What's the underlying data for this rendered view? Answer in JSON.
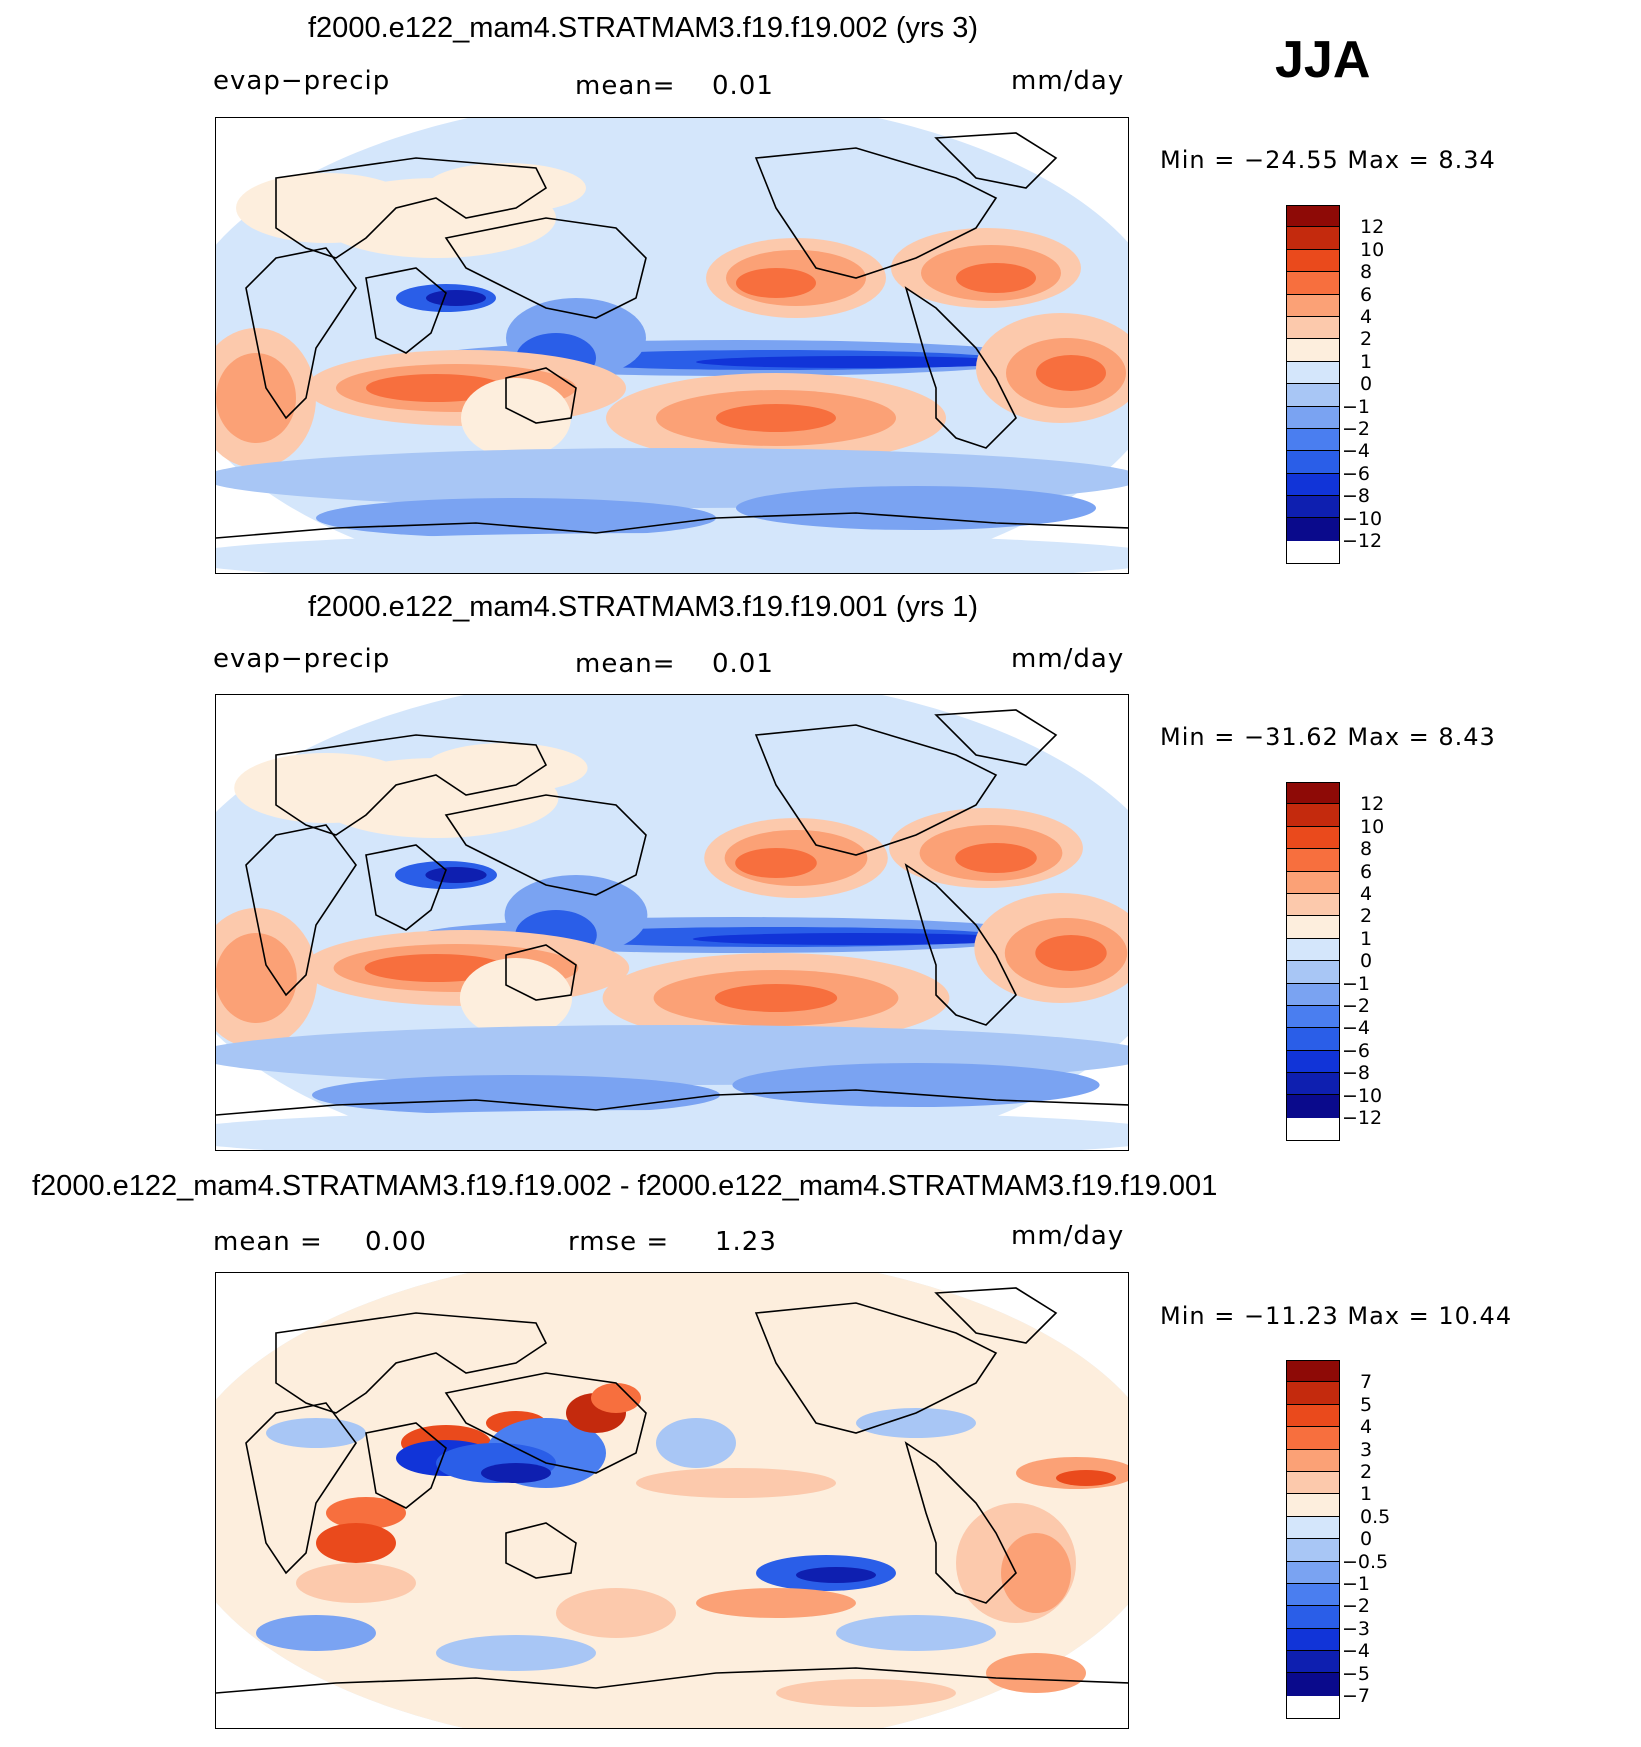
{
  "season": "JJA",
  "colors": {
    "field_levels": [
      "#0a0a8c",
      "#0e1fb0",
      "#1134d8",
      "#2a5ee8",
      "#4a7ef0",
      "#7aa3f2",
      "#a8c6f5",
      "#d4e6fb",
      "#fdeedd",
      "#fcc9ac",
      "#fba176",
      "#f76f3e",
      "#ea4a1c",
      "#c42a0d",
      "#8e0a06"
    ],
    "diff_levels": [
      "#0a0a8c",
      "#0e1fb0",
      "#1134d8",
      "#2a5ee8",
      "#4a7ef0",
      "#7aa3f2",
      "#a8c6f5",
      "#d4e6fb",
      "#fdeedd",
      "#fcc9ac",
      "#fba176",
      "#f76f3e",
      "#ea4a1c",
      "#c42a0d",
      "#8e0a06"
    ],
    "land_outline": "#000000"
  },
  "panels": [
    {
      "title": "f2000.e122_mam4.STRATMAM3.f19.f19.002 (yrs 3)",
      "left_label": "evap−precip",
      "mid_label": "mean=",
      "mid_value": "0.01",
      "units": "mm/day",
      "min_label": "Min  =  −24.55  Max  =      8.34",
      "ticks": [
        "12",
        "10",
        "8",
        "6",
        "4",
        "2",
        "1",
        "0",
        "−1",
        "−2",
        "−4",
        "−6",
        "−8",
        "−10",
        "−12"
      ]
    },
    {
      "title": "f2000.e122_mam4.STRATMAM3.f19.f19.001 (yrs 1)",
      "left_label": "evap−precip",
      "mid_label": "mean=",
      "mid_value": "0.01",
      "units": "mm/day",
      "min_label": "Min  =  −31.62  Max  =      8.43",
      "ticks": [
        "12",
        "10",
        "8",
        "6",
        "4",
        "2",
        "1",
        "0",
        "−1",
        "−2",
        "−4",
        "−6",
        "−8",
        "−10",
        "−12"
      ]
    },
    {
      "title": "f2000.e122_mam4.STRATMAM3.f19.f19.002 - f2000.e122_mam4.STRATMAM3.f19.f19.001",
      "left_label": "mean  =",
      "left_value": "0.00",
      "mid_label": "rmse  =",
      "mid_value": "1.23",
      "units": "mm/day",
      "min_label": "Min  =  −11.23  Max  =    10.44",
      "ticks": [
        "7",
        "5",
        "4",
        "3",
        "2",
        "1",
        "0.5",
        "0",
        "−0.5",
        "−1",
        "−2",
        "−3",
        "−4",
        "−5",
        "−7"
      ]
    }
  ],
  "chart_data": [
    {
      "type": "heatmap",
      "title": "f2000.e122_mam4.STRATMAM3.f19.f19.002 (yrs 3)",
      "variable": "evap−precip",
      "units": "mm/day",
      "mean": 0.01,
      "min": -24.55,
      "max": 8.34,
      "contour_levels": [
        -12,
        -10,
        -8,
        -6,
        -4,
        -2,
        -1,
        0,
        1,
        2,
        4,
        6,
        8,
        10,
        12
      ]
    },
    {
      "type": "heatmap",
      "title": "f2000.e122_mam4.STRATMAM3.f19.f19.001 (yrs 1)",
      "variable": "evap−precip",
      "units": "mm/day",
      "mean": 0.01,
      "min": -31.62,
      "max": 8.43,
      "contour_levels": [
        -12,
        -10,
        -8,
        -6,
        -4,
        -2,
        -1,
        0,
        1,
        2,
        4,
        6,
        8,
        10,
        12
      ]
    },
    {
      "type": "heatmap",
      "title": "f2000.e122_mam4.STRATMAM3.f19.f19.002 - f2000.e122_mam4.STRATMAM3.f19.f19.001",
      "units": "mm/day",
      "mean": 0.0,
      "rmse": 1.23,
      "min": -11.23,
      "max": 10.44,
      "contour_levels": [
        -7,
        -5,
        -4,
        -3,
        -2,
        -1,
        -0.5,
        0,
        0.5,
        1,
        2,
        3,
        4,
        5,
        7
      ]
    }
  ]
}
